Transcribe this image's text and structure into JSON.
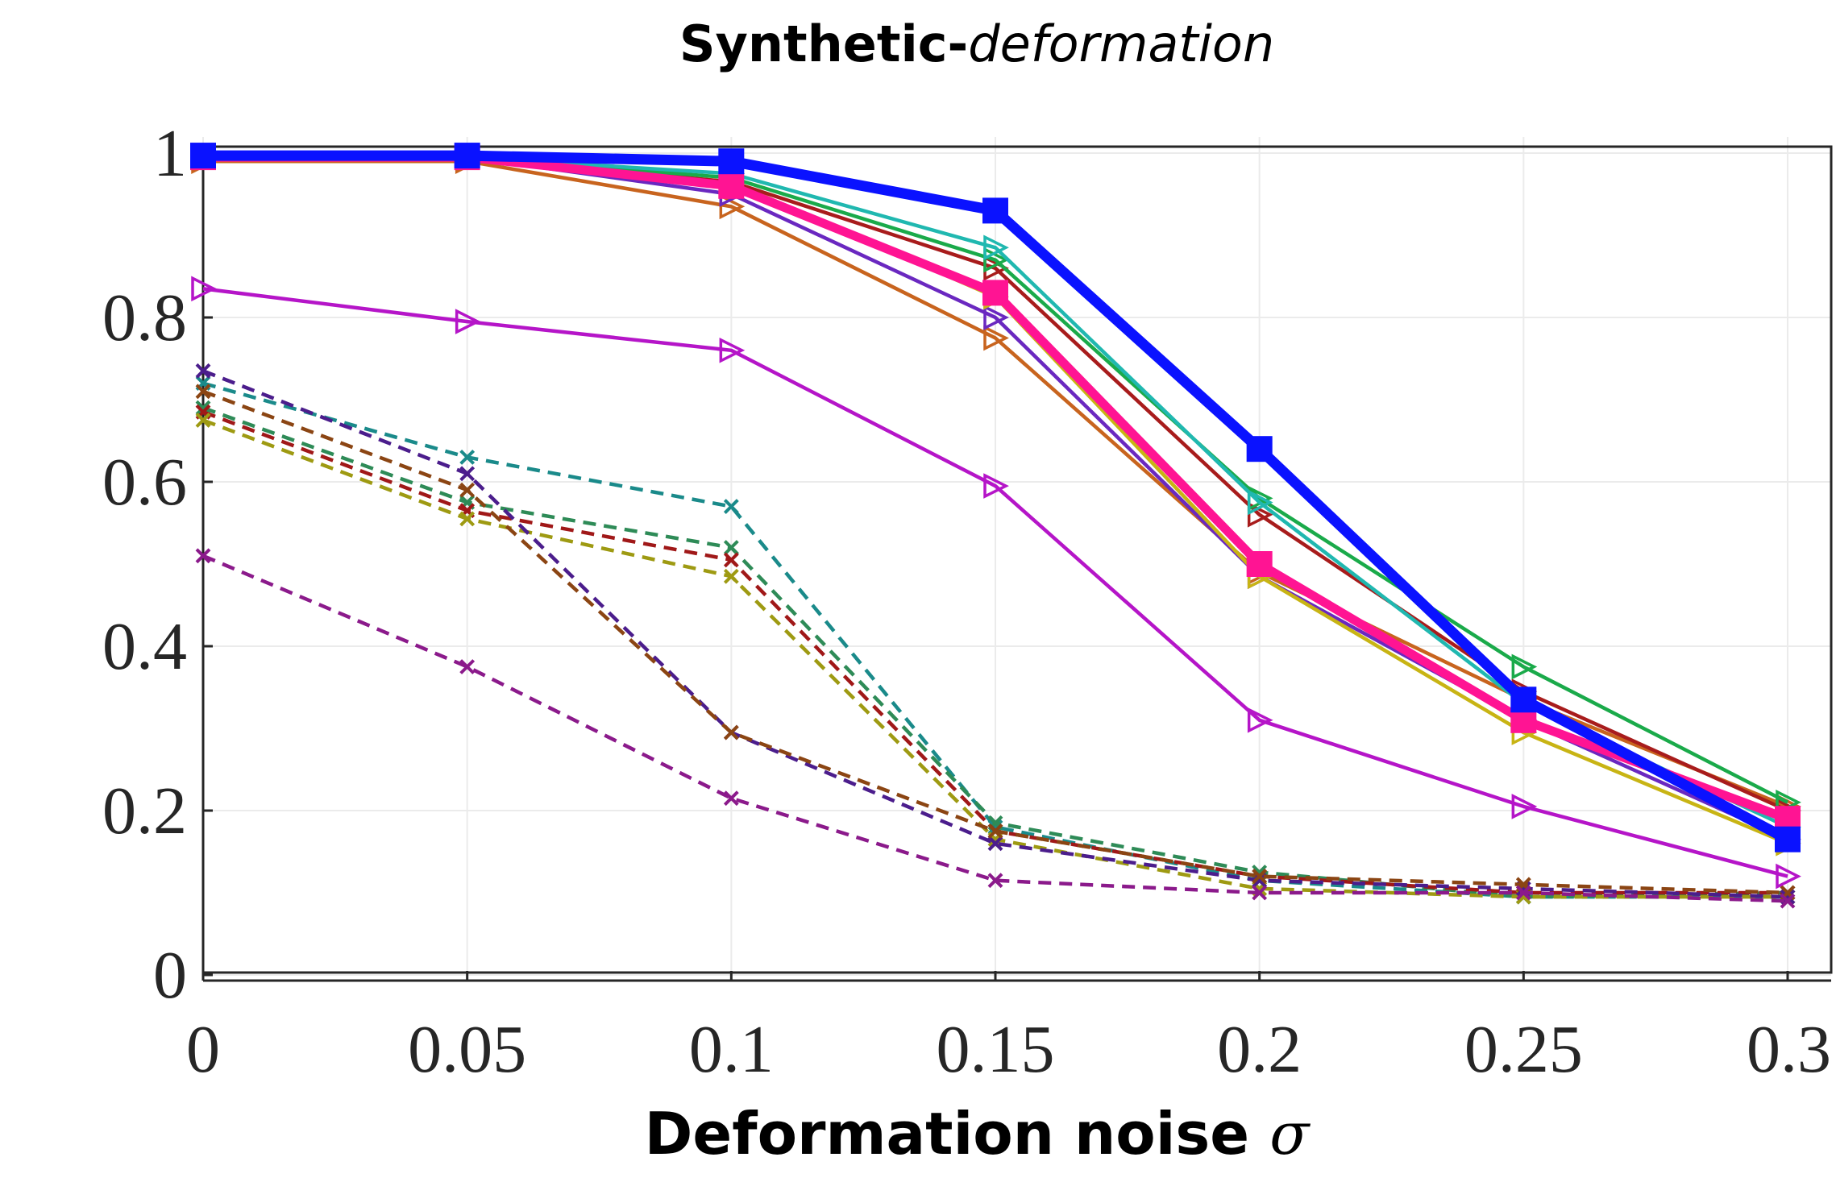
{
  "chart_data": {
    "type": "line",
    "title": "Synthetic-",
    "title_italic": "deformation",
    "xlabel": "Deformation noise ",
    "xlabel_symbol": "σ",
    "ylabel": "",
    "x": [
      0,
      0.05,
      0.1,
      0.15,
      0.2,
      0.25,
      0.3
    ],
    "x_tick_labels": [
      "0",
      "0.05",
      "0.1",
      "0.15",
      "0.2",
      "0.25",
      "0.3"
    ],
    "y_ticks": [
      0,
      0.2,
      0.4,
      0.6,
      0.8,
      1
    ],
    "y_tick_labels": [
      "0",
      "0.2",
      "0.4",
      "0.6",
      "0.8",
      "1"
    ],
    "xlim": [
      0,
      0.3
    ],
    "ylim": [
      0,
      1
    ],
    "grid": true,
    "series": [
      {
        "name": "dashed-teal",
        "style": "dashed",
        "marker": "x",
        "color": "#1a8a8a",
        "values": [
          0.72,
          0.63,
          0.57,
          0.18,
          0.115,
          0.095,
          0.095
        ]
      },
      {
        "name": "dashed-green",
        "style": "dashed",
        "marker": "x",
        "color": "#2e8b57",
        "values": [
          0.69,
          0.575,
          0.52,
          0.185,
          0.125,
          0.095,
          0.1
        ]
      },
      {
        "name": "dashed-darkred",
        "style": "dashed",
        "marker": "x",
        "color": "#a01818",
        "values": [
          0.685,
          0.565,
          0.505,
          0.175,
          0.12,
          0.1,
          0.1
        ]
      },
      {
        "name": "dashed-olive",
        "style": "dashed",
        "marker": "x",
        "color": "#9e9a12",
        "values": [
          0.675,
          0.555,
          0.485,
          0.165,
          0.105,
          0.095,
          0.095
        ]
      },
      {
        "name": "dashed-indigo",
        "style": "dashed",
        "marker": "x",
        "color": "#4b1d8c",
        "values": [
          0.735,
          0.61,
          0.295,
          0.16,
          0.115,
          0.105,
          0.095
        ]
      },
      {
        "name": "dashed-brown",
        "style": "dashed",
        "marker": "x",
        "color": "#8b4513",
        "values": [
          0.71,
          0.59,
          0.295,
          0.175,
          0.12,
          0.11,
          0.1
        ]
      },
      {
        "name": "dashed-purple",
        "style": "dashed",
        "marker": "x",
        "color": "#8b1a8b",
        "values": [
          0.51,
          0.375,
          0.215,
          0.115,
          0.1,
          0.1,
          0.09
        ]
      },
      {
        "name": "solid-magenta",
        "style": "solid",
        "marker": "triangle-right",
        "color": "#b515c8",
        "values": [
          0.835,
          0.795,
          0.76,
          0.595,
          0.31,
          0.205,
          0.12
        ]
      },
      {
        "name": "solid-orange",
        "style": "solid",
        "marker": "triangle-right",
        "color": "#c8641e",
        "values": [
          0.99,
          0.99,
          0.935,
          0.775,
          0.49,
          0.335,
          0.205
        ]
      },
      {
        "name": "solid-violet",
        "style": "solid",
        "marker": "triangle-right",
        "color": "#6a28c0",
        "values": [
          0.995,
          0.995,
          0.95,
          0.8,
          0.485,
          0.31,
          0.165
        ]
      },
      {
        "name": "solid-yellow",
        "style": "solid",
        "marker": "triangle-right",
        "color": "#c8b414",
        "values": [
          0.995,
          0.995,
          0.965,
          0.825,
          0.485,
          0.295,
          0.16
        ]
      },
      {
        "name": "solid-darkred",
        "style": "solid",
        "marker": "triangle-right",
        "color": "#a81c1c",
        "values": [
          0.995,
          0.995,
          0.965,
          0.86,
          0.56,
          0.345,
          0.2
        ]
      },
      {
        "name": "solid-green",
        "style": "solid",
        "marker": "triangle-right",
        "color": "#1aaa4a",
        "values": [
          0.995,
          0.995,
          0.97,
          0.87,
          0.58,
          0.375,
          0.21
        ]
      },
      {
        "name": "solid-cyan",
        "style": "solid",
        "marker": "triangle-right",
        "color": "#20b8b0",
        "values": [
          0.995,
          0.995,
          0.975,
          0.885,
          0.575,
          0.33,
          0.18
        ]
      },
      {
        "name": "thick-pink",
        "style": "solid-thick",
        "marker": "square",
        "color": "#ff1493",
        "values": [
          0.995,
          0.995,
          0.96,
          0.83,
          0.5,
          0.31,
          0.19
        ]
      },
      {
        "name": "thick-blue",
        "style": "solid-thick",
        "marker": "square",
        "color": "#0a12ff",
        "values": [
          0.997,
          0.997,
          0.99,
          0.93,
          0.64,
          0.335,
          0.165
        ]
      }
    ]
  }
}
